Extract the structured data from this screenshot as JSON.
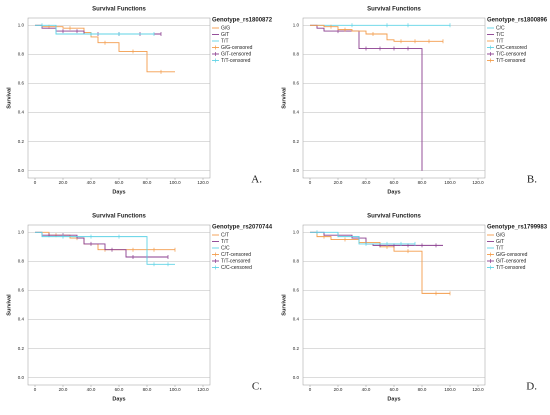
{
  "chart_data": [
    {
      "type": "line",
      "step": true,
      "title": "Survival Functions",
      "xlabel": "Days",
      "ylabel": "Survival",
      "legend_title": "Genotype_rs1800872",
      "panel_label": "A.",
      "xlim": [
        -5,
        125
      ],
      "ylim": [
        -0.05,
        1.05
      ],
      "grid": true,
      "xticks": [
        0,
        {
          "value": 20,
          "label": "20.0"
        },
        {
          "value": 40,
          "label": "40.0"
        },
        {
          "value": 60,
          "label": "60.0"
        },
        {
          "value": 80,
          "label": "80.0"
        },
        {
          "value": 100,
          "label": "100.0"
        },
        {
          "value": 120,
          "label": "120.0"
        }
      ],
      "yticks": [
        {
          "value": 0,
          "label": "0.0"
        },
        {
          "value": 0.2,
          "label": "0.2"
        },
        {
          "value": 0.4,
          "label": "0.4"
        },
        {
          "value": 0.6,
          "label": "0.6"
        },
        {
          "value": 0.8,
          "label": "0.8"
        },
        {
          "value": 1,
          "label": "1.0"
        }
      ],
      "series": [
        {
          "name": "G/G",
          "censored_name": "G/G-censored",
          "color": "#f39c4b",
          "x": [
            0,
            5,
            20,
            35,
            40,
            45,
            60,
            80,
            100
          ],
          "values": [
            1,
            0.99,
            0.98,
            0.95,
            0.92,
            0.88,
            0.82,
            0.68,
            0.68
          ],
          "censored_x": [
            10,
            25,
            50,
            70,
            90
          ],
          "censored_values": [
            0.99,
            0.98,
            0.88,
            0.82,
            0.68
          ]
        },
        {
          "name": "G/T",
          "censored_name": "G/T-censored",
          "color": "#8a3d8f",
          "x": [
            0,
            5,
            15,
            35,
            90
          ],
          "values": [
            1,
            0.98,
            0.96,
            0.94,
            0.94
          ],
          "censored_x": [
            20,
            30,
            45,
            60,
            75,
            90
          ],
          "censored_values": [
            0.96,
            0.96,
            0.94,
            0.94,
            0.94,
            0.94
          ]
        },
        {
          "name": "T/T",
          "censored_name": "T/T-censored",
          "color": "#5fd3e6",
          "x": [
            0,
            15,
            85
          ],
          "values": [
            1,
            0.94,
            0.94
          ],
          "censored_x": [
            5,
            40,
            60,
            85
          ],
          "censored_values": [
            1,
            0.94,
            0.94,
            0.94
          ]
        }
      ]
    },
    {
      "type": "line",
      "step": true,
      "title": "Survival Functions",
      "xlabel": "Days",
      "ylabel": "Survival",
      "legend_title": "Genotype_rs1800896",
      "panel_label": "B.",
      "xlim": [
        -5,
        125
      ],
      "ylim": [
        -0.05,
        1.05
      ],
      "grid": true,
      "xticks": [
        0,
        {
          "value": 20,
          "label": "20.0"
        },
        {
          "value": 40,
          "label": "40.0"
        },
        {
          "value": 60,
          "label": "60.0"
        },
        {
          "value": 80,
          "label": "80.0"
        },
        {
          "value": 100,
          "label": "100.0"
        },
        {
          "value": 120,
          "label": "120.0"
        }
      ],
      "yticks": [
        {
          "value": 0,
          "label": "0.0"
        },
        {
          "value": 0.2,
          "label": "0.2"
        },
        {
          "value": 0.4,
          "label": "0.4"
        },
        {
          "value": 0.6,
          "label": "0.6"
        },
        {
          "value": 0.8,
          "label": "0.8"
        },
        {
          "value": 1,
          "label": "1.0"
        }
      ],
      "series": [
        {
          "name": "C/C",
          "censored_name": "C/C-censored",
          "color": "#5fd3e6",
          "x": [
            0,
            100
          ],
          "values": [
            1,
            1
          ],
          "censored_x": [
            30,
            55,
            70,
            100
          ],
          "censored_values": [
            1,
            1,
            1,
            1
          ]
        },
        {
          "name": "T/C",
          "censored_name": "T/C-censored",
          "color": "#8a3d8f",
          "x": [
            0,
            5,
            10,
            35,
            80
          ],
          "values": [
            1,
            0.98,
            0.96,
            0.84,
            0
          ],
          "censored_x": [
            20,
            40,
            50,
            60,
            70
          ],
          "censored_values": [
            0.96,
            0.84,
            0.84,
            0.84,
            0.84
          ]
        },
        {
          "name": "T/T",
          "censored_name": "T/T-censored",
          "color": "#f39c4b",
          "x": [
            0,
            10,
            20,
            30,
            40,
            55,
            60,
            95
          ],
          "values": [
            1,
            0.99,
            0.97,
            0.96,
            0.94,
            0.9,
            0.89,
            0.89
          ],
          "censored_x": [
            15,
            25,
            45,
            65,
            75,
            85,
            95
          ],
          "censored_values": [
            0.99,
            0.97,
            0.94,
            0.89,
            0.89,
            0.89,
            0.89
          ]
        }
      ]
    },
    {
      "type": "line",
      "step": true,
      "title": "Survival Functions",
      "xlabel": "Days",
      "ylabel": "Survival",
      "legend_title": "Genotype_rs2070744",
      "panel_label": "C.",
      "xlim": [
        -5,
        125
      ],
      "ylim": [
        -0.05,
        1.05
      ],
      "grid": true,
      "xticks": [
        0,
        {
          "value": 20,
          "label": "20.0"
        },
        {
          "value": 40,
          "label": "40.0"
        },
        {
          "value": 60,
          "label": "60.0"
        },
        {
          "value": 80,
          "label": "80.0"
        },
        {
          "value": 100,
          "label": "100.0"
        },
        {
          "value": 120,
          "label": "120.0"
        }
      ],
      "yticks": [
        {
          "value": 0,
          "label": "0.0"
        },
        {
          "value": 0.2,
          "label": "0.2"
        },
        {
          "value": 0.4,
          "label": "0.4"
        },
        {
          "value": 0.6,
          "label": "0.6"
        },
        {
          "value": 0.8,
          "label": "0.8"
        },
        {
          "value": 1,
          "label": "1.0"
        }
      ],
      "series": [
        {
          "name": "C/T",
          "censored_name": "C/T-censored",
          "color": "#f39c4b",
          "x": [
            0,
            10,
            25,
            35,
            45,
            100
          ],
          "values": [
            1,
            0.98,
            0.96,
            0.92,
            0.88,
            0.88
          ],
          "censored_x": [
            15,
            30,
            50,
            70,
            85,
            100
          ],
          "censored_values": [
            0.98,
            0.96,
            0.88,
            0.88,
            0.88,
            0.88
          ]
        },
        {
          "name": "T/T",
          "censored_name": "T/T-censored",
          "color": "#8a3d8f",
          "x": [
            0,
            5,
            30,
            35,
            50,
            65,
            95
          ],
          "values": [
            1,
            0.98,
            0.96,
            0.92,
            0.88,
            0.83,
            0.83
          ],
          "censored_x": [
            10,
            20,
            40,
            55,
            70,
            80,
            95
          ],
          "censored_values": [
            0.98,
            0.98,
            0.92,
            0.88,
            0.83,
            0.83,
            0.83
          ]
        },
        {
          "name": "C/C",
          "censored_name": "C/C-censored",
          "color": "#5fd3e6",
          "x": [
            0,
            5,
            80,
            100
          ],
          "values": [
            1,
            0.97,
            0.78,
            0.78
          ],
          "censored_x": [
            20,
            40,
            60,
            85,
            95
          ],
          "censored_values": [
            0.97,
            0.97,
            0.97,
            0.78,
            0.78
          ]
        }
      ]
    },
    {
      "type": "line",
      "step": true,
      "title": "Survival Functions",
      "xlabel": "Days",
      "ylabel": "Survival",
      "legend_title": "Genotype_rs1799983",
      "panel_label": "D.",
      "xlim": [
        -5,
        125
      ],
      "ylim": [
        -0.05,
        1.05
      ],
      "grid": true,
      "xticks": [
        0,
        {
          "value": 20,
          "label": "20.0"
        },
        {
          "value": 40,
          "label": "40.0"
        },
        {
          "value": 60,
          "label": "60.0"
        },
        {
          "value": 80,
          "label": "80.0"
        },
        {
          "value": 100,
          "label": "100.0"
        },
        {
          "value": 120,
          "label": "120.0"
        }
      ],
      "yticks": [
        {
          "value": 0,
          "label": "0.0"
        },
        {
          "value": 0.2,
          "label": "0.2"
        },
        {
          "value": 0.4,
          "label": "0.4"
        },
        {
          "value": 0.6,
          "label": "0.6"
        },
        {
          "value": 0.8,
          "label": "0.8"
        },
        {
          "value": 1,
          "label": "1.0"
        }
      ],
      "series": [
        {
          "name": "G/G",
          "censored_name": "G/G-censored",
          "color": "#f39c4b",
          "x": [
            0,
            5,
            15,
            35,
            50,
            60,
            80,
            100
          ],
          "values": [
            1,
            0.97,
            0.95,
            0.93,
            0.9,
            0.87,
            0.58,
            0.58
          ],
          "censored_x": [
            10,
            25,
            40,
            55,
            70,
            90,
            100
          ],
          "censored_values": [
            0.97,
            0.95,
            0.93,
            0.9,
            0.87,
            0.58,
            0.58
          ]
        },
        {
          "name": "G/T",
          "censored_name": "G/T-censored",
          "color": "#8a3d8f",
          "x": [
            0,
            10,
            30,
            40,
            45,
            95
          ],
          "values": [
            1,
            0.98,
            0.96,
            0.92,
            0.91,
            0.91
          ],
          "censored_x": [
            20,
            35,
            50,
            60,
            70,
            80,
            90
          ],
          "censored_values": [
            0.98,
            0.96,
            0.91,
            0.91,
            0.91,
            0.91,
            0.91
          ]
        },
        {
          "name": "T/T",
          "censored_name": "T/T-censored",
          "color": "#5fd3e6",
          "x": [
            0,
            20,
            35,
            75
          ],
          "values": [
            1,
            0.97,
            0.92,
            0.92
          ],
          "censored_x": [
            5,
            40,
            55,
            65,
            75
          ],
          "censored_values": [
            1,
            0.92,
            0.92,
            0.92,
            0.92
          ]
        }
      ]
    }
  ]
}
